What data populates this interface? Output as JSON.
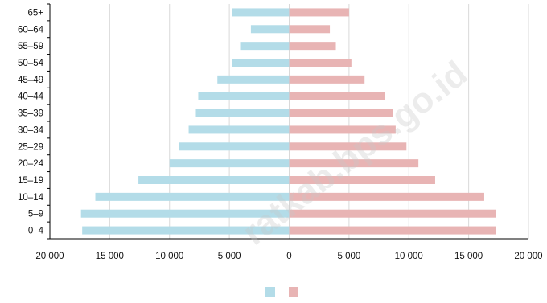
{
  "watermark": "ratkab.bps.go.id",
  "chart_data": {
    "type": "bar",
    "orientation": "horizontal-population-pyramid",
    "categories": [
      "65+",
      "60–64",
      "55–59",
      "50–54",
      "45–49",
      "40–44",
      "35–39",
      "30–34",
      "25–29",
      "20–24",
      "15–19",
      "10–14",
      "5–9",
      "0–4"
    ],
    "series": [
      {
        "color": "#b3dce8",
        "values": [
          4800,
          3200,
          4100,
          4800,
          6000,
          7600,
          7800,
          8400,
          9200,
          10000,
          12600,
          16200,
          17400,
          17300
        ]
      },
      {
        "color": "#e8b4b4",
        "values": [
          5000,
          3400,
          3900,
          5200,
          6300,
          8000,
          8700,
          8900,
          9800,
          10800,
          12200,
          16300,
          17300,
          17300
        ]
      }
    ],
    "xlim": [
      -20000,
      20000
    ],
    "xticks": [
      {
        "value": -20000,
        "label": "20 000"
      },
      {
        "value": -15000,
        "label": "15 000"
      },
      {
        "value": -10000,
        "label": "10 000"
      },
      {
        "value": -5000,
        "label": "5 000"
      },
      {
        "value": 0,
        "label": "0"
      },
      {
        "value": 5000,
        "label": "5 000"
      },
      {
        "value": 10000,
        "label": "10 000"
      },
      {
        "value": 15000,
        "label": "15 000"
      },
      {
        "value": 20000,
        "label": "20 000"
      }
    ],
    "grid": "vertical",
    "legend": "bottom-center",
    "gridColor": "#d9d9d9",
    "axisColor": "#000000"
  }
}
